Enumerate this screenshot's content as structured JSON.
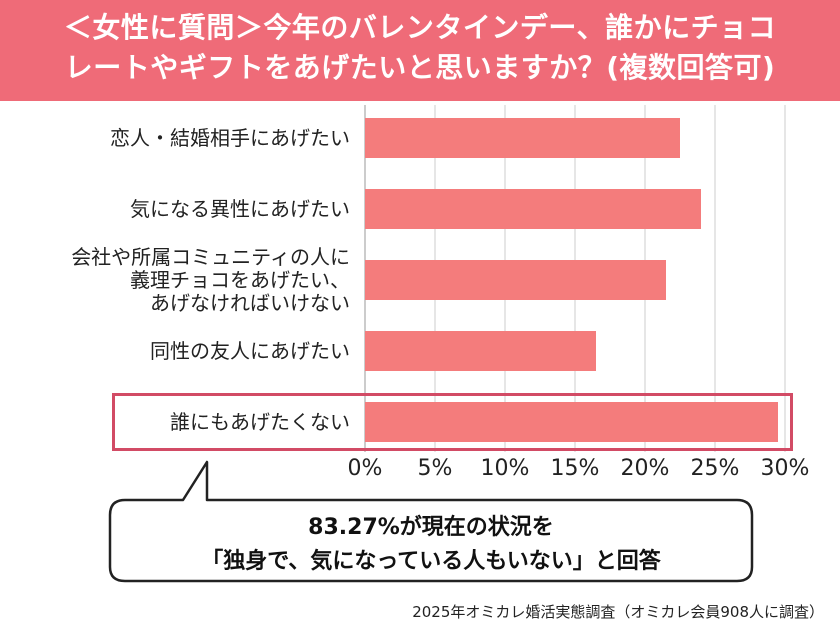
{
  "header": {
    "line1": "＜女性に質問＞今年のバレンタインデー、誰かにチョコ",
    "line2": "レートやギフトをあげたいと思いますか？(複数回答可)"
  },
  "colors": {
    "header_bg": "#ef6b78",
    "bar": "#f47c7c",
    "highlight": "#d24b65",
    "grid": "#cccccc"
  },
  "chart_data": {
    "type": "bar",
    "orientation": "horizontal",
    "categories": [
      [
        "恋人・結婚相手にあげたい"
      ],
      [
        "気になる異性にあげたい"
      ],
      [
        "会社や所属コミュニティの人に",
        "義理チョコをあげたい、",
        "あげなければいけない"
      ],
      [
        "同性の友人にあげたい"
      ],
      [
        "誰にもあげたくない"
      ]
    ],
    "values": [
      22.5,
      24.0,
      21.5,
      16.5,
      29.5
    ],
    "xlim": [
      0,
      30
    ],
    "xticks": [
      "0%",
      "5%",
      "10%",
      "15%",
      "20%",
      "25%",
      "30%"
    ],
    "grid": true,
    "highlighted_category": "誰にもあげたくない"
  },
  "callout": {
    "line1": "83.27%が現在の状況を",
    "line2": "「独身で、気になっている人もいない」と回答"
  },
  "source": "2025年オミカレ婚活実態調査（オミカレ会員908人に調査）"
}
